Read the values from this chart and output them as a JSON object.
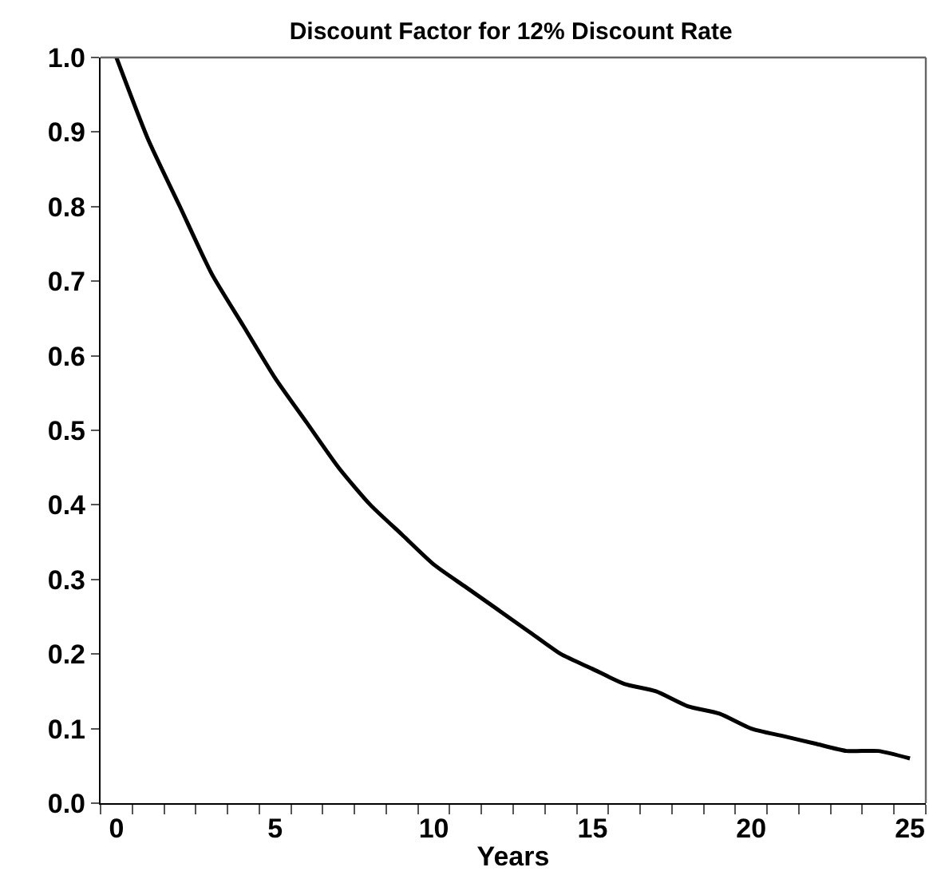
{
  "chart_data": {
    "type": "line",
    "title": "Discount Factor for 12% Discount Rate",
    "xlabel": "Years",
    "x": [
      0,
      1,
      2,
      3,
      4,
      5,
      6,
      7,
      8,
      9,
      10,
      11,
      12,
      13,
      14,
      15,
      16,
      17,
      18,
      19,
      20,
      21,
      22,
      23,
      24,
      25
    ],
    "series": [
      {
        "color": "#000000",
        "values": [
          1.0,
          0.89,
          0.8,
          0.71,
          0.64,
          0.57,
          0.51,
          0.45,
          0.4,
          0.36,
          0.32,
          0.29,
          0.26,
          0.23,
          0.2,
          0.18,
          0.16,
          0.15,
          0.13,
          0.12,
          0.1,
          0.09,
          0.08,
          0.07,
          0.07,
          0.06
        ]
      }
    ],
    "xlim": [
      -0.5,
      25.5
    ],
    "xticks": [
      0,
      5,
      10,
      15,
      20,
      25,
      {
        "value": -0.5,
        "label": null
      },
      {
        "value": 0.5,
        "label": null
      },
      {
        "value": 1.5,
        "label": null
      },
      {
        "value": 2.5,
        "label": null
      },
      {
        "value": 3.5,
        "label": null
      },
      {
        "value": 4.5,
        "label": null
      },
      {
        "value": 5.5,
        "label": null
      },
      {
        "value": 6.5,
        "label": null
      },
      {
        "value": 7.5,
        "label": null
      },
      {
        "value": 8.5,
        "label": null
      },
      {
        "value": 9.5,
        "label": null
      },
      {
        "value": 10.5,
        "label": null
      },
      {
        "value": 11.5,
        "label": null
      },
      {
        "value": 12.5,
        "label": null
      },
      {
        "value": 13.5,
        "label": null
      },
      {
        "value": 14.5,
        "label": null
      },
      {
        "value": 15.5,
        "label": null
      },
      {
        "value": 16.5,
        "label": null
      },
      {
        "value": 17.5,
        "label": null
      },
      {
        "value": 18.5,
        "label": null
      },
      {
        "value": 19.5,
        "label": null
      },
      {
        "value": 20.5,
        "label": null
      },
      {
        "value": 21.5,
        "label": null
      },
      {
        "value": 22.5,
        "label": null
      },
      {
        "value": 23.5,
        "label": null
      },
      {
        "value": 24.5,
        "label": null
      },
      {
        "value": 25.5,
        "label": null
      }
    ],
    "ylim": [
      0,
      1
    ],
    "yticks": [
      {
        "value": 0,
        "label": "0.0"
      },
      {
        "value": 0.1,
        "label": "0.1"
      },
      {
        "value": 0.2,
        "label": "0.2"
      },
      {
        "value": 0.3,
        "label": "0.3"
      },
      {
        "value": 0.4,
        "label": "0.4"
      },
      {
        "value": 0.5,
        "label": "0.5"
      },
      {
        "value": 0.6,
        "label": "0.6"
      },
      {
        "value": 0.7,
        "label": "0.7"
      },
      {
        "value": 0.8,
        "label": "0.8"
      },
      {
        "value": 0.9,
        "label": "0.9"
      },
      {
        "value": 1,
        "label": "1.0"
      }
    ],
    "marker": "none",
    "line_style": "solid"
  }
}
